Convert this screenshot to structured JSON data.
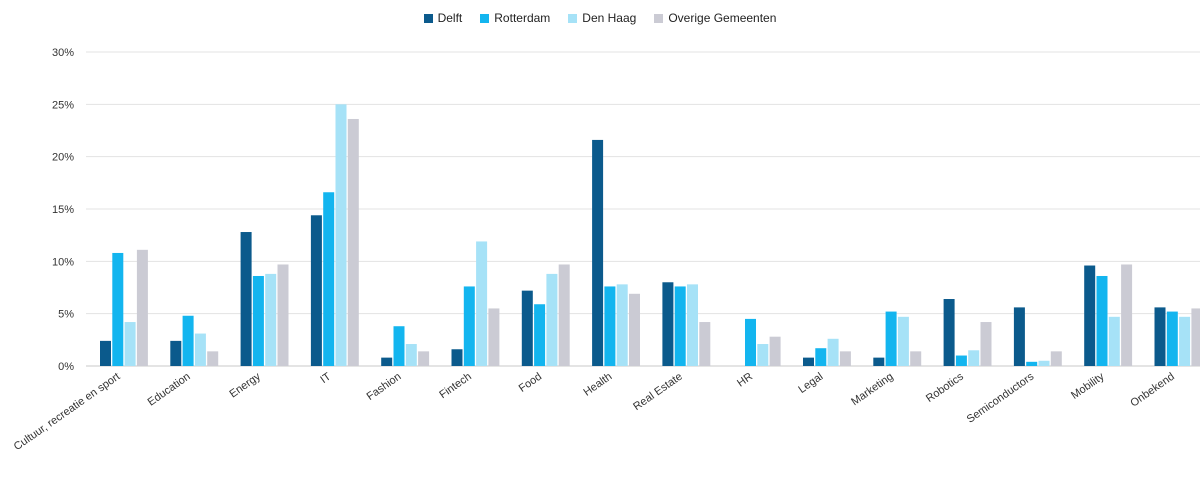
{
  "chart_data": {
    "type": "bar",
    "categories": [
      "Cultuur, recreatie en sport",
      "Education",
      "Energy",
      "IT",
      "Fashion",
      "Fintech",
      "Food",
      "Health",
      "Real Estate",
      "HR",
      "Legal",
      "Marketing",
      "Robotics",
      "Semiconductors",
      "Mobility",
      "Onbekend"
    ],
    "series": [
      {
        "name": "Delft",
        "color": "#0b5a8c",
        "values": [
          2.4,
          2.4,
          12.8,
          14.4,
          0.8,
          1.6,
          7.2,
          21.6,
          8.0,
          0.0,
          0.8,
          0.8,
          6.4,
          5.6,
          9.6,
          5.6
        ]
      },
      {
        "name": "Rotterdam",
        "color": "#13b5ef",
        "values": [
          10.8,
          4.8,
          8.6,
          16.6,
          3.8,
          7.6,
          5.9,
          7.6,
          7.6,
          4.5,
          1.7,
          5.2,
          1.0,
          0.4,
          8.6,
          5.2
        ]
      },
      {
        "name": "Den Haag",
        "color": "#a6e2f7",
        "values": [
          4.2,
          3.1,
          8.8,
          25.0,
          2.1,
          11.9,
          8.8,
          7.8,
          7.8,
          2.1,
          2.6,
          4.7,
          1.5,
          0.5,
          4.7,
          4.7
        ]
      },
      {
        "name": "Overige Gemeenten",
        "color": "#cbcbd4",
        "values": [
          11.1,
          1.4,
          9.7,
          23.6,
          1.4,
          5.5,
          9.7,
          6.9,
          4.2,
          2.8,
          1.4,
          1.4,
          4.2,
          1.4,
          9.7,
          5.5
        ]
      }
    ],
    "y_ticks": [
      "0%",
      "5%",
      "10%",
      "15%",
      "20%",
      "25%",
      "30%"
    ],
    "ylim": [
      0,
      30
    ],
    "grid": true,
    "legend_position": "top-center"
  }
}
